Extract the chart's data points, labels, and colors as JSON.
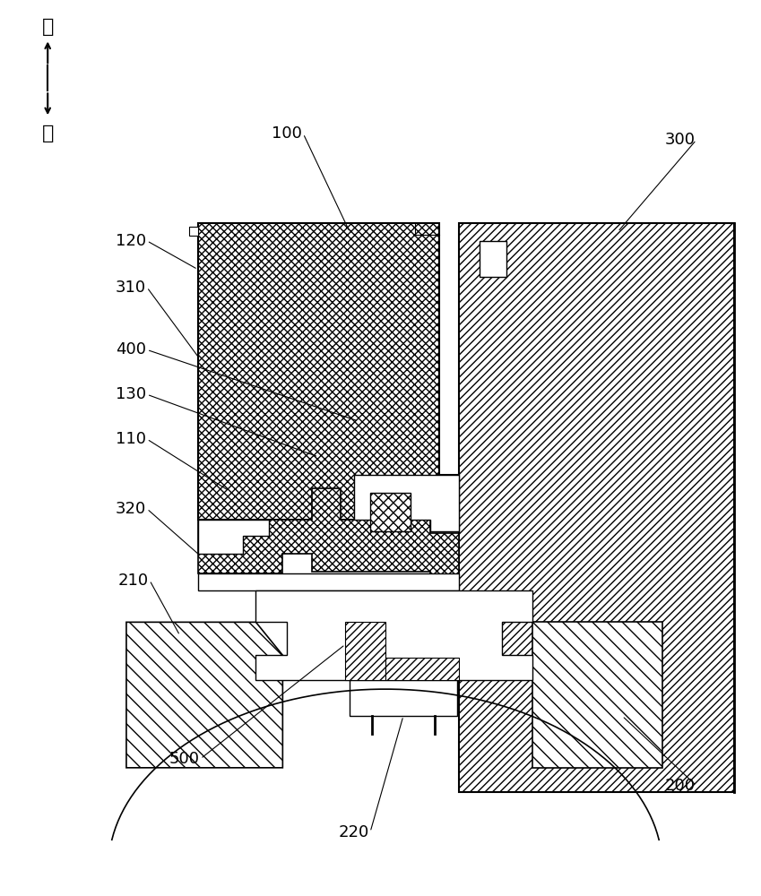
{
  "bg_color": "#ffffff",
  "line_color": "#000000",
  "arrow_up_label": "上",
  "arrow_down_label": "下",
  "labels_info": [
    [
      "100",
      320,
      148,
      390,
      258
    ],
    [
      "300",
      760,
      155,
      690,
      258
    ],
    [
      "120",
      145,
      268,
      220,
      300
    ],
    [
      "310",
      145,
      320,
      222,
      400
    ],
    [
      "400",
      145,
      390,
      400,
      470
    ],
    [
      "130",
      145,
      440,
      355,
      510
    ],
    [
      "110",
      145,
      490,
      255,
      548
    ],
    [
      "320",
      145,
      568,
      222,
      620
    ],
    [
      "210",
      148,
      648,
      200,
      710
    ],
    [
      "500",
      205,
      848,
      385,
      720
    ],
    [
      "220",
      395,
      930,
      450,
      800
    ],
    [
      "200",
      760,
      878,
      695,
      800
    ]
  ]
}
